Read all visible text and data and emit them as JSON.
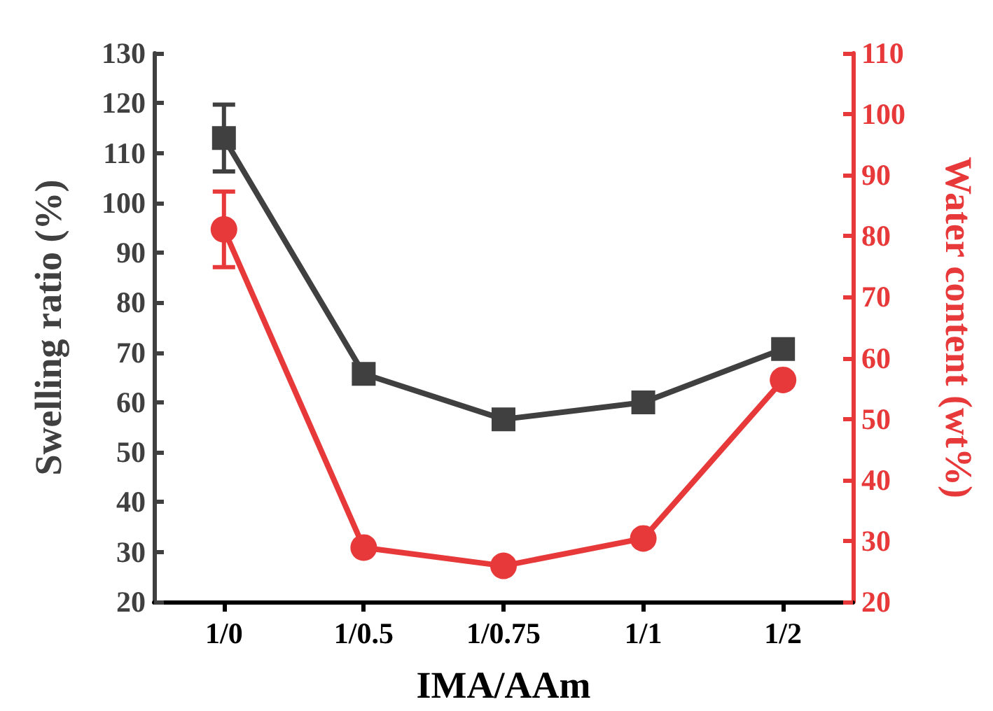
{
  "chart_data": {
    "type": "line",
    "xlabel": "IMA/AAm",
    "ylabel": "Swelling ratio (%)",
    "y2label": "Water content (wt%)",
    "categories": [
      "1/0",
      "1/0.5",
      "1/0.75",
      "1/1",
      "1/2"
    ],
    "series": [
      {
        "color": "#404040",
        "marker": "square",
        "values": [
          113,
          65.7,
          56.6,
          60,
          70.7
        ],
        "errors": [
          6.7,
          null,
          null,
          null,
          null
        ]
      },
      {
        "color": "#e8393a",
        "marker": "circle",
        "axis": "y2",
        "values": [
          81.1,
          28.9,
          25.9,
          30.4,
          56.4
        ],
        "errors": [
          6.2,
          null,
          null,
          null,
          null
        ]
      }
    ],
    "ylim": [
      20,
      130
    ],
    "yticks": [
      20,
      30,
      40,
      50,
      60,
      70,
      80,
      90,
      100,
      110,
      120,
      130
    ],
    "y2lim": [
      20,
      110
    ],
    "y2ticks": [
      20,
      30,
      40,
      50,
      60,
      70,
      80,
      90,
      100,
      110
    ],
    "grid": false,
    "line_style": "solid"
  }
}
